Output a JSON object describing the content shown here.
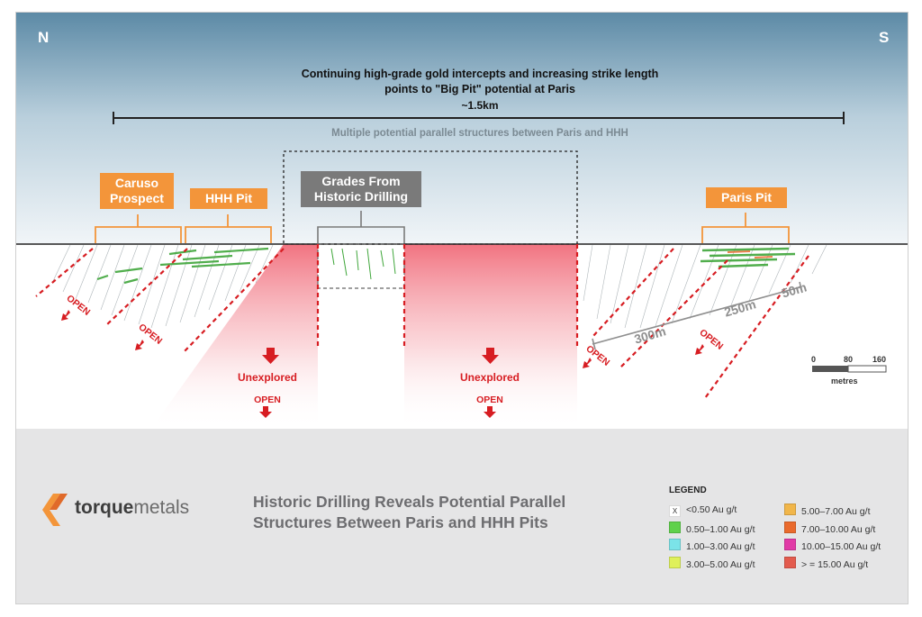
{
  "compass": {
    "north": "N",
    "south": "S"
  },
  "headline": {
    "line1": "Continuing high-grade gold intercepts and increasing strike length",
    "line2": "points to \"Big Pit\" potential at Paris"
  },
  "strike_length": "~1.5km",
  "subnote": "Multiple potential parallel structures between Paris and HHH",
  "labels": {
    "caruso_line1": "Caruso",
    "caruso_line2": "Prospect",
    "hhh": "HHH Pit",
    "grades_line1": "Grades From",
    "grades_line2": "Historic Drilling",
    "paris": "Paris Pit"
  },
  "open_label": "OPEN",
  "unexplored_label": "Unexplored",
  "distances": [
    "300m",
    "250m",
    "50m"
  ],
  "scale": {
    "ticks": [
      "0",
      "80",
      "160"
    ],
    "unit": "metres"
  },
  "logo": {
    "bold": "torque",
    "light": "metals"
  },
  "footer_title": {
    "line1": "Historic Drilling Reveals Potential Parallel",
    "line2": "Structures Between Paris and HHH Pits"
  },
  "legend": {
    "title": "LEGEND",
    "items": [
      {
        "label": "<0.50 Au g/t",
        "color": "#ffffff",
        "mark": "X"
      },
      {
        "label": "0.50–1.00 Au g/t",
        "color": "#5fd14a",
        "mark": ""
      },
      {
        "label": "1.00–3.00 Au g/t",
        "color": "#7be3e8",
        "mark": ""
      },
      {
        "label": "3.00–5.00 Au g/t",
        "color": "#dff05a",
        "mark": ""
      },
      {
        "label": "5.00–7.00 Au g/t",
        "color": "#f1b64a",
        "mark": ""
      },
      {
        "label": "7.00–10.00 Au g/t",
        "color": "#ea6a2c",
        "mark": ""
      },
      {
        "label": "10.00–15.00 Au g/t",
        "color": "#e13aa6",
        "mark": ""
      },
      {
        "label": "> = 15.00 Au g/t",
        "color": "#e35b4e",
        "mark": ""
      }
    ]
  },
  "colors": {
    "accent": "#f3953a",
    "open_red": "#d71d22",
    "sky_top": "#5e8ca8",
    "footer_bg": "#e5e5e6"
  }
}
